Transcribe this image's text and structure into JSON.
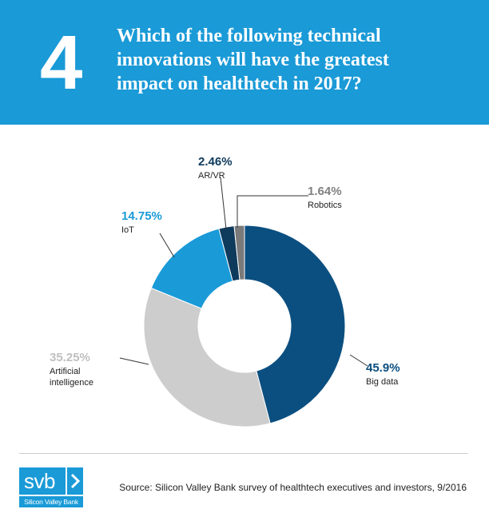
{
  "header": {
    "number": "4",
    "question_lines": [
      "Which of the following technical",
      "innovations will have the greatest",
      "impact on healthtech in 2017?"
    ]
  },
  "chart_data": {
    "type": "pie",
    "style": "donut",
    "title": "Which of the following technical innovations will have the greatest impact on healthtech in 2017?",
    "slices": [
      {
        "label": "Big data",
        "value": 45.9,
        "label_text": "45.9%",
        "color": "#0b4f80",
        "label_color": "#0b4f80"
      },
      {
        "label": "Artificial intelligence",
        "label_lines": [
          "Artificial",
          "intelligence"
        ],
        "value": 35.25,
        "label_text": "35.25%",
        "color": "#cdcdcd",
        "label_color": "#bfbfbf"
      },
      {
        "label": "IoT",
        "value": 14.75,
        "label_text": "14.75%",
        "color": "#1a9ad7",
        "label_color": "#1a9ad7"
      },
      {
        "label": "AR/VR",
        "value": 2.46,
        "label_text": "2.46%",
        "color": "#0e3a5c",
        "label_color": "#0e3a5c"
      },
      {
        "label": "Robotics",
        "value": 1.64,
        "label_text": "1.64%",
        "color": "#7a7a7a",
        "label_color": "#808080"
      }
    ]
  },
  "footer": {
    "logo_text": "svb",
    "logo_subtext": "Silicon Valley Bank",
    "source": "Source: Silicon Valley Bank survey of healthtech executives and investors, 9/2016"
  },
  "colors": {
    "header_bg": "#1a9ad7",
    "text": "#222222"
  }
}
